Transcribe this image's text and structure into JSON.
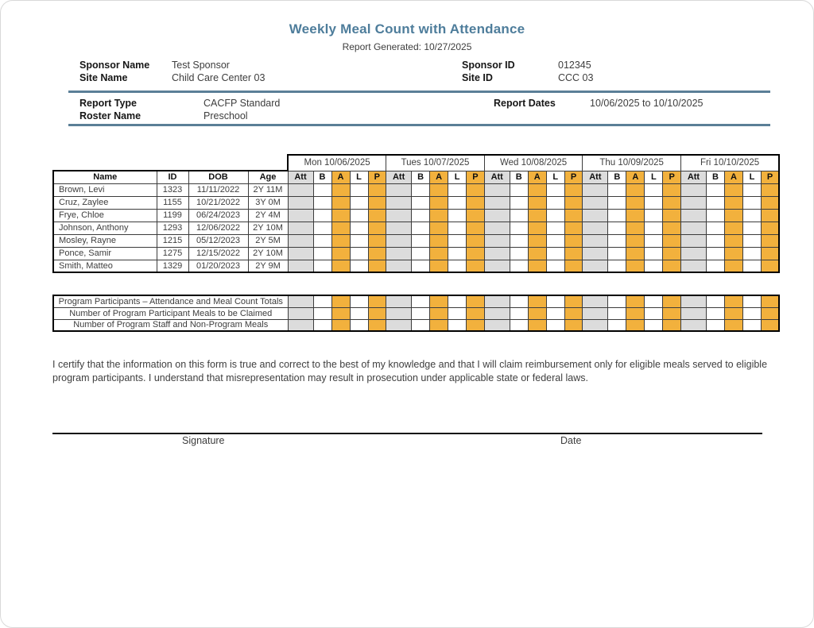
{
  "page": {
    "title": "Weekly Meal Count with Attendance",
    "subtitle": "Report Generated: 10/27/2025"
  },
  "header": {
    "sponsor_name_label": "Sponsor Name",
    "sponsor_name": "Test Sponsor",
    "site_name_label": "Site Name",
    "site_name": "Child Care Center 03",
    "sponsor_id_label": "Sponsor ID",
    "sponsor_id": "012345",
    "site_id_label": "Site ID",
    "site_id": "CCC 03"
  },
  "report_info": {
    "report_type_label": "Report Type",
    "report_type": "CACFP Standard",
    "roster_name_label": "Roster Name",
    "roster_name": "Preschool",
    "report_dates_label": "Report Dates",
    "report_dates": "10/06/2025 to 10/10/2025"
  },
  "attendance_table": {
    "left_headers": [
      "Name",
      "ID",
      "DOB",
      "Age"
    ],
    "day_headers": [
      "Mon 10/06/2025",
      "Tues 10/07/2025",
      "Wed 10/08/2025",
      "Thu 10/09/2025",
      "Fri 10/10/2025"
    ],
    "meal_subheaders": [
      "Att",
      "B",
      "A",
      "L",
      "P"
    ],
    "participants": [
      {
        "name": "Brown, Levi",
        "id": "1323",
        "dob": "11/11/2022",
        "age": "2Y 11M"
      },
      {
        "name": "Cruz, Zaylee",
        "id": "1155",
        "dob": "10/21/2022",
        "age": "3Y 0M"
      },
      {
        "name": "Frye, Chloe",
        "id": "1199",
        "dob": "06/24/2023",
        "age": "2Y 4M"
      },
      {
        "name": "Johnson, Anthony",
        "id": "1293",
        "dob": "12/06/2022",
        "age": "2Y 10M"
      },
      {
        "name": "Mosley, Rayne",
        "id": "1215",
        "dob": "05/12/2023",
        "age": "2Y 5M"
      },
      {
        "name": "Ponce, Samir",
        "id": "1275",
        "dob": "12/15/2022",
        "age": "2Y 10M"
      },
      {
        "name": "Smith, Matteo",
        "id": "1329",
        "dob": "01/20/2023",
        "age": "2Y 9M"
      }
    ]
  },
  "totals_table": {
    "rows": [
      "Program Participants – Attendance and Meal Count Totals",
      "Number of Program Participant Meals to be Claimed",
      "Number of Program Staff and Non-Program Meals"
    ]
  },
  "certification": {
    "text": "I certify that the information on this form is true and correct to the best of my knowledge and that I will claim reimbursement only for eligible meals served to eligible program participants. I understand that misrepresentation may result in prosecution under applicable state or federal laws."
  },
  "signature_section": {
    "signature_label": "Signature",
    "date_label": "Date"
  },
  "colors": {
    "accent_blue": "#4e7d9b",
    "rule_blue": "#5b7f97",
    "highlight_orange": "#f2b13d",
    "attendance_gray": "#dcdcdc"
  }
}
